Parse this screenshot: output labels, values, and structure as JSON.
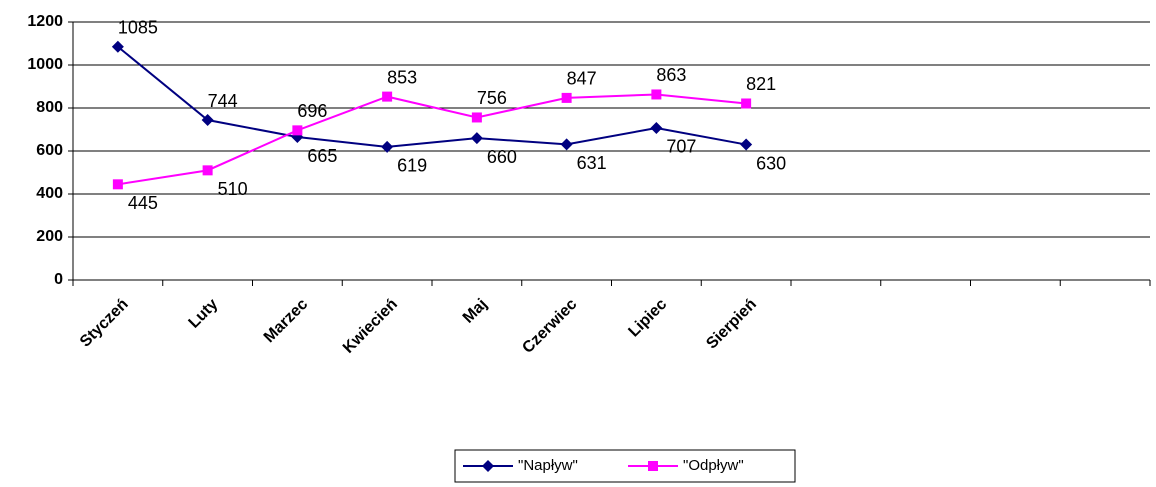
{
  "chart_data": {
    "type": "line",
    "categories": [
      "Styczeń",
      "Luty",
      "Marzec",
      "Kwiecień",
      "Maj",
      "Czerwiec",
      "Lipiec",
      "Sierpień",
      null,
      null,
      null,
      null
    ],
    "series": [
      {
        "name": "\"Napływ\"",
        "color": "#000080",
        "marker": "diamond",
        "values": [
          1085,
          744,
          665,
          619,
          660,
          631,
          707,
          630,
          null,
          null,
          null,
          null
        ]
      },
      {
        "name": "\"Odpływ\"",
        "color": "#ff00ff",
        "marker": "square",
        "values": [
          445,
          510,
          696,
          853,
          756,
          847,
          863,
          821,
          null,
          null,
          null,
          null
        ]
      }
    ],
    "ylim": [
      0,
      1200
    ],
    "yticks": [
      0,
      200,
      400,
      600,
      800,
      1000,
      1200
    ],
    "grid": true,
    "legend": "bottom"
  }
}
